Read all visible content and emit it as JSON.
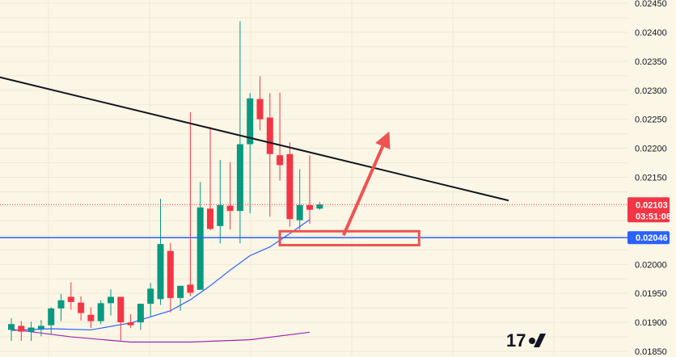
{
  "chart_data": {
    "type": "candlestick",
    "ylim": [
      0.0185,
      0.0245
    ],
    "y_ticks": [
      "0.02450",
      "0.02400",
      "0.02350",
      "0.02300",
      "0.02250",
      "0.02200",
      "0.02150",
      "0.02000",
      "0.01950",
      "0.01900",
      "0.01850"
    ],
    "candles": [
      {
        "o": 0.01887,
        "h": 0.01907,
        "l": 0.01868,
        "c": 0.01897
      },
      {
        "o": 0.01894,
        "h": 0.01902,
        "l": 0.01868,
        "c": 0.01884
      },
      {
        "o": 0.01884,
        "h": 0.01901,
        "l": 0.01868,
        "c": 0.01891
      },
      {
        "o": 0.01889,
        "h": 0.01904,
        "l": 0.01876,
        "c": 0.01894
      },
      {
        "o": 0.01895,
        "h": 0.01926,
        "l": 0.0188,
        "c": 0.01924
      },
      {
        "o": 0.01924,
        "h": 0.01949,
        "l": 0.01902,
        "c": 0.01938
      },
      {
        "o": 0.01944,
        "h": 0.01969,
        "l": 0.01922,
        "c": 0.01935
      },
      {
        "o": 0.01934,
        "h": 0.01945,
        "l": 0.01903,
        "c": 0.01916
      },
      {
        "o": 0.01913,
        "h": 0.01926,
        "l": 0.0189,
        "c": 0.01902
      },
      {
        "o": 0.01902,
        "h": 0.01938,
        "l": 0.01897,
        "c": 0.01933
      },
      {
        "o": 0.01933,
        "h": 0.01957,
        "l": 0.01912,
        "c": 0.01944
      },
      {
        "o": 0.01944,
        "h": 0.01944,
        "l": 0.01869,
        "c": 0.019
      },
      {
        "o": 0.019,
        "h": 0.01914,
        "l": 0.0189,
        "c": 0.01895
      },
      {
        "o": 0.019,
        "h": 0.01932,
        "l": 0.01887,
        "c": 0.01932
      },
      {
        "o": 0.01932,
        "h": 0.01968,
        "l": 0.0191,
        "c": 0.01958
      },
      {
        "o": 0.0194,
        "h": 0.02113,
        "l": 0.0193,
        "c": 0.02035
      },
      {
        "o": 0.02023,
        "h": 0.02037,
        "l": 0.01917,
        "c": 0.01942
      },
      {
        "o": 0.01942,
        "h": 0.0196,
        "l": 0.0192,
        "c": 0.01963
      },
      {
        "o": 0.01965,
        "h": 0.02262,
        "l": 0.01945,
        "c": 0.01951
      },
      {
        "o": 0.01956,
        "h": 0.02142,
        "l": 0.01957,
        "c": 0.02098
      },
      {
        "o": 0.02096,
        "h": 0.02237,
        "l": 0.02059,
        "c": 0.02061
      },
      {
        "o": 0.02066,
        "h": 0.0218,
        "l": 0.02036,
        "c": 0.02102
      },
      {
        "o": 0.02101,
        "h": 0.02176,
        "l": 0.0206,
        "c": 0.02092
      },
      {
        "o": 0.02092,
        "h": 0.02419,
        "l": 0.02036,
        "c": 0.02207
      },
      {
        "o": 0.02207,
        "h": 0.02295,
        "l": 0.02088,
        "c": 0.02286
      },
      {
        "o": 0.02285,
        "h": 0.02324,
        "l": 0.02231,
        "c": 0.0225
      },
      {
        "o": 0.02253,
        "h": 0.02295,
        "l": 0.02082,
        "c": 0.0219
      },
      {
        "o": 0.02188,
        "h": 0.02296,
        "l": 0.02144,
        "c": 0.02171
      },
      {
        "o": 0.0219,
        "h": 0.0221,
        "l": 0.02065,
        "c": 0.02078
      },
      {
        "o": 0.02076,
        "h": 0.02164,
        "l": 0.0206,
        "c": 0.02102
      },
      {
        "o": 0.02102,
        "h": 0.02188,
        "l": 0.0207,
        "c": 0.02094
      },
      {
        "o": 0.02096,
        "h": 0.02107,
        "l": 0.02094,
        "c": 0.02103
      }
    ],
    "moving_averages": [
      {
        "color": "#2962ff",
        "points": [
          [
            0,
            0.01886
          ],
          [
            4,
            0.01889
          ],
          [
            8,
            0.01887
          ],
          [
            12,
            0.01899
          ],
          [
            16,
            0.0192
          ],
          [
            18,
            0.01939
          ],
          [
            20,
            0.01963
          ],
          [
            22,
            0.0199
          ],
          [
            24,
            0.02015
          ],
          [
            26,
            0.0203
          ],
          [
            28,
            0.02053
          ],
          [
            30,
            0.02077
          ]
        ]
      },
      {
        "color": "#9c27b0",
        "points": [
          [
            0,
            0.01888
          ],
          [
            6,
            0.01875
          ],
          [
            12,
            0.01866
          ],
          [
            18,
            0.01866
          ],
          [
            24,
            0.0187
          ],
          [
            30,
            0.01883
          ]
        ]
      }
    ],
    "trendline": {
      "color": "#131722",
      "from": [
        -11.65,
        0.02366
      ],
      "to": [
        50,
        0.0211
      ]
    },
    "horizontal_line": {
      "value": 0.02046,
      "color": "#2962ff",
      "label": "0.02046"
    },
    "price_tag": {
      "value": 0.02103,
      "color": "#f23645",
      "label": "0.02103",
      "countdown": "03:51:08"
    },
    "annotation_box": {
      "x": [
        27,
        41
      ],
      "y": [
        0.02033,
        0.02057
      ],
      "color": "#ef5350"
    },
    "annotation_arrow": {
      "from": [
        33.4,
        0.0205
      ],
      "to": [
        38,
        0.02229
      ],
      "color": "#ef5350"
    },
    "up_color": "#089981",
    "down_color": "#f23645",
    "grid": true
  }
}
